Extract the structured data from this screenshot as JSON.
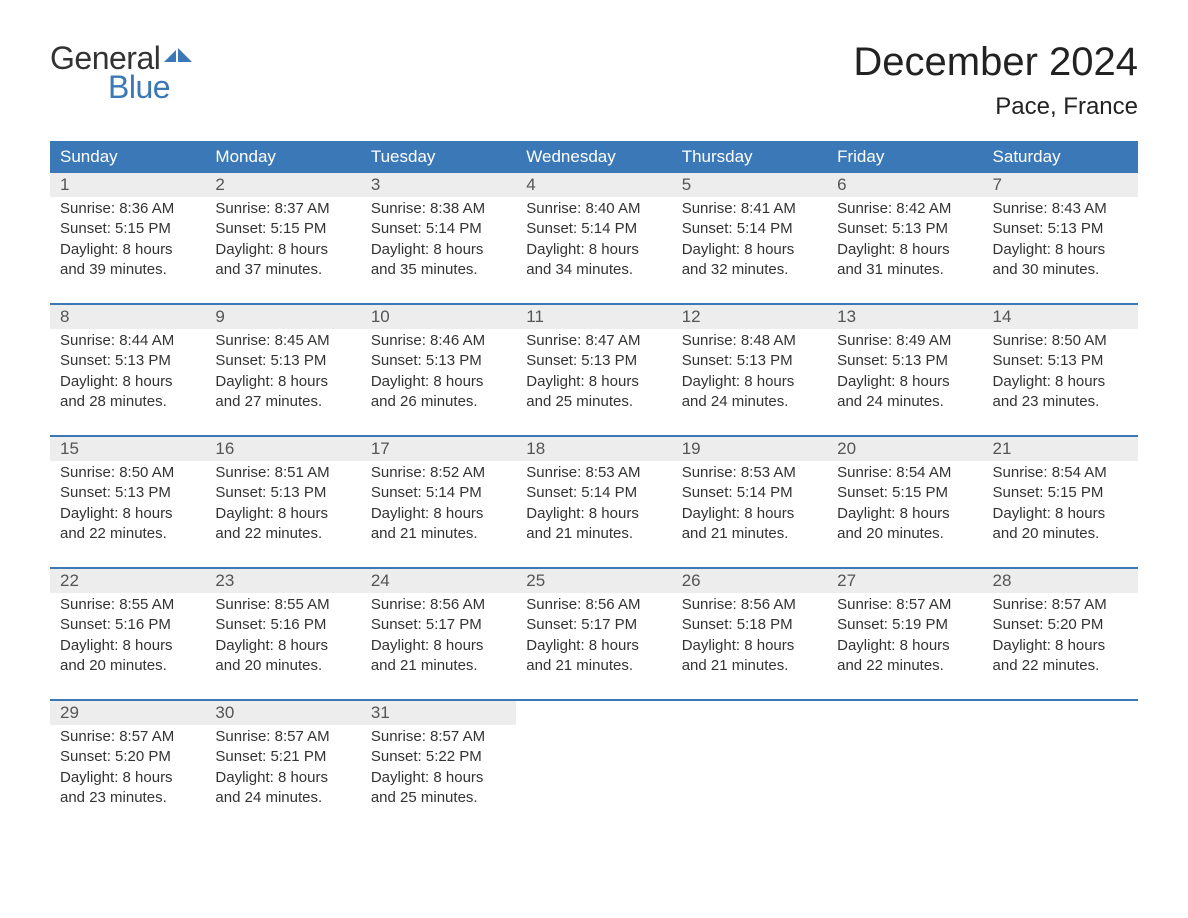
{
  "logo": {
    "text_top": "General",
    "text_bottom": "Blue",
    "color_top": "#333333",
    "color_bottom": "#3b78b8",
    "flag_color": "#3b78b8"
  },
  "header": {
    "month_title": "December 2024",
    "location": "Pace, France"
  },
  "colors": {
    "header_bg": "#3b78b8",
    "header_text": "#ffffff",
    "daynum_bg": "#ededed",
    "daynum_text": "#555555",
    "body_text": "#333333",
    "week_border": "#3b78b8",
    "page_bg": "#ffffff"
  },
  "typography": {
    "month_title_size": 40,
    "location_size": 24,
    "day_header_size": 17,
    "daynum_size": 17,
    "data_size": 15,
    "font_family": "Arial"
  },
  "day_headers": [
    "Sunday",
    "Monday",
    "Tuesday",
    "Wednesday",
    "Thursday",
    "Friday",
    "Saturday"
  ],
  "labels": {
    "sunrise": "Sunrise:",
    "sunset": "Sunset:",
    "daylight_prefix": "Daylight:"
  },
  "weeks": [
    [
      {
        "day": "1",
        "sunrise": "8:36 AM",
        "sunset": "5:15 PM",
        "daylight": "8 hours and 39 minutes."
      },
      {
        "day": "2",
        "sunrise": "8:37 AM",
        "sunset": "5:15 PM",
        "daylight": "8 hours and 37 minutes."
      },
      {
        "day": "3",
        "sunrise": "8:38 AM",
        "sunset": "5:14 PM",
        "daylight": "8 hours and 35 minutes."
      },
      {
        "day": "4",
        "sunrise": "8:40 AM",
        "sunset": "5:14 PM",
        "daylight": "8 hours and 34 minutes."
      },
      {
        "day": "5",
        "sunrise": "8:41 AM",
        "sunset": "5:14 PM",
        "daylight": "8 hours and 32 minutes."
      },
      {
        "day": "6",
        "sunrise": "8:42 AM",
        "sunset": "5:13 PM",
        "daylight": "8 hours and 31 minutes."
      },
      {
        "day": "7",
        "sunrise": "8:43 AM",
        "sunset": "5:13 PM",
        "daylight": "8 hours and 30 minutes."
      }
    ],
    [
      {
        "day": "8",
        "sunrise": "8:44 AM",
        "sunset": "5:13 PM",
        "daylight": "8 hours and 28 minutes."
      },
      {
        "day": "9",
        "sunrise": "8:45 AM",
        "sunset": "5:13 PM",
        "daylight": "8 hours and 27 minutes."
      },
      {
        "day": "10",
        "sunrise": "8:46 AM",
        "sunset": "5:13 PM",
        "daylight": "8 hours and 26 minutes."
      },
      {
        "day": "11",
        "sunrise": "8:47 AM",
        "sunset": "5:13 PM",
        "daylight": "8 hours and 25 minutes."
      },
      {
        "day": "12",
        "sunrise": "8:48 AM",
        "sunset": "5:13 PM",
        "daylight": "8 hours and 24 minutes."
      },
      {
        "day": "13",
        "sunrise": "8:49 AM",
        "sunset": "5:13 PM",
        "daylight": "8 hours and 24 minutes."
      },
      {
        "day": "14",
        "sunrise": "8:50 AM",
        "sunset": "5:13 PM",
        "daylight": "8 hours and 23 minutes."
      }
    ],
    [
      {
        "day": "15",
        "sunrise": "8:50 AM",
        "sunset": "5:13 PM",
        "daylight": "8 hours and 22 minutes."
      },
      {
        "day": "16",
        "sunrise": "8:51 AM",
        "sunset": "5:13 PM",
        "daylight": "8 hours and 22 minutes."
      },
      {
        "day": "17",
        "sunrise": "8:52 AM",
        "sunset": "5:14 PM",
        "daylight": "8 hours and 21 minutes."
      },
      {
        "day": "18",
        "sunrise": "8:53 AM",
        "sunset": "5:14 PM",
        "daylight": "8 hours and 21 minutes."
      },
      {
        "day": "19",
        "sunrise": "8:53 AM",
        "sunset": "5:14 PM",
        "daylight": "8 hours and 21 minutes."
      },
      {
        "day": "20",
        "sunrise": "8:54 AM",
        "sunset": "5:15 PM",
        "daylight": "8 hours and 20 minutes."
      },
      {
        "day": "21",
        "sunrise": "8:54 AM",
        "sunset": "5:15 PM",
        "daylight": "8 hours and 20 minutes."
      }
    ],
    [
      {
        "day": "22",
        "sunrise": "8:55 AM",
        "sunset": "5:16 PM",
        "daylight": "8 hours and 20 minutes."
      },
      {
        "day": "23",
        "sunrise": "8:55 AM",
        "sunset": "5:16 PM",
        "daylight": "8 hours and 20 minutes."
      },
      {
        "day": "24",
        "sunrise": "8:56 AM",
        "sunset": "5:17 PM",
        "daylight": "8 hours and 21 minutes."
      },
      {
        "day": "25",
        "sunrise": "8:56 AM",
        "sunset": "5:17 PM",
        "daylight": "8 hours and 21 minutes."
      },
      {
        "day": "26",
        "sunrise": "8:56 AM",
        "sunset": "5:18 PM",
        "daylight": "8 hours and 21 minutes."
      },
      {
        "day": "27",
        "sunrise": "8:57 AM",
        "sunset": "5:19 PM",
        "daylight": "8 hours and 22 minutes."
      },
      {
        "day": "28",
        "sunrise": "8:57 AM",
        "sunset": "5:20 PM",
        "daylight": "8 hours and 22 minutes."
      }
    ],
    [
      {
        "day": "29",
        "sunrise": "8:57 AM",
        "sunset": "5:20 PM",
        "daylight": "8 hours and 23 minutes."
      },
      {
        "day": "30",
        "sunrise": "8:57 AM",
        "sunset": "5:21 PM",
        "daylight": "8 hours and 24 minutes."
      },
      {
        "day": "31",
        "sunrise": "8:57 AM",
        "sunset": "5:22 PM",
        "daylight": "8 hours and 25 minutes."
      },
      null,
      null,
      null,
      null
    ]
  ]
}
